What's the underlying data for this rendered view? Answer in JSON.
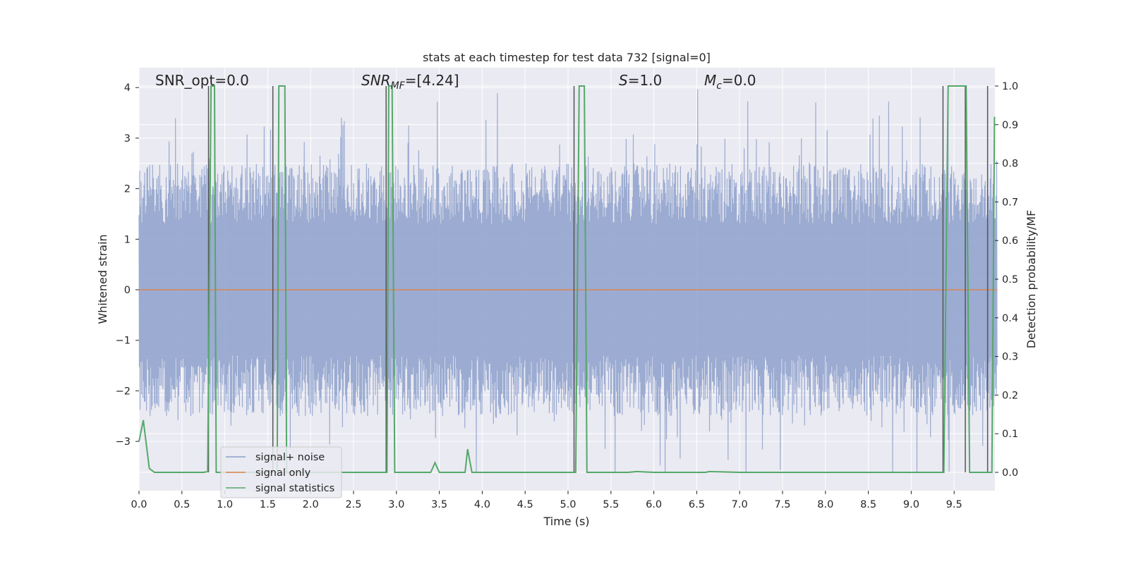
{
  "chart_data": {
    "type": "line",
    "title": "stats at each timestep for test data 732 [signal=0]",
    "xlabel": "Time (s)",
    "ylabel_left": "Whitened strain",
    "ylabel_right": "Detection probability/MF",
    "xlim": [
      0.0,
      10.0
    ],
    "ylim_left": [
      -3.9,
      4.4
    ],
    "ylim_right": [
      -0.047,
      1.047
    ],
    "x_ticks": [
      "0.0",
      "0.5",
      "1.0",
      "1.5",
      "2.0",
      "2.5",
      "3.0",
      "3.5",
      "4.0",
      "4.5",
      "5.0",
      "5.5",
      "6.0",
      "6.5",
      "7.0",
      "7.5",
      "8.0",
      "8.5",
      "9.0",
      "9.5"
    ],
    "y_ticks_left": [
      "4",
      "3",
      "2",
      "1",
      "0",
      "−1",
      "−2",
      "−3"
    ],
    "y_ticks_right": [
      "1.0",
      "0.9",
      "0.8",
      "0.7",
      "0.6",
      "0.5",
      "0.4",
      "0.3",
      "0.2",
      "0.1",
      "0.0"
    ],
    "grid": true,
    "legend_placement": "lower-left",
    "annotations": {
      "snr_opt": "SNR_opt=0.0",
      "snr_mf_base": "SNR",
      "snr_mf_sub": "MF",
      "snr_mf_value": "=[4.24]",
      "s_symbol": "S",
      "s_value": "=1.0",
      "mc_symbol": "M",
      "mc_sub": "c",
      "mc_value": "=0.0"
    },
    "noise_envelope": {
      "description_of_series": "signal+ noise",
      "typical_abs_range": [
        1.3,
        2.5
      ],
      "max_peak": 4.0,
      "min_trough": -3.6
    },
    "series": [
      {
        "name": "signal+ noise",
        "color": "#8da0cb",
        "axis": "left"
      },
      {
        "name": "signal only",
        "color": "#dd8452",
        "axis": "left",
        "x": [
          0.0,
          10.0
        ],
        "y": [
          0.0,
          0.0
        ]
      },
      {
        "name": "signal statistics",
        "color": "#55a868",
        "axis": "right",
        "x": [
          0.0,
          0.05,
          0.12,
          0.18,
          0.3,
          0.5,
          0.75,
          0.8,
          0.84,
          0.86,
          0.88,
          0.9,
          0.93,
          1.0,
          1.5,
          1.61,
          1.63,
          1.65,
          1.68,
          1.7,
          1.72,
          1.8,
          2.5,
          2.89,
          2.91,
          2.93,
          2.95,
          2.98,
          3.0,
          3.4,
          3.45,
          3.5,
          3.8,
          3.83,
          3.88,
          4.0,
          5.0,
          5.09,
          5.13,
          5.19,
          5.22,
          5.3,
          5.7,
          5.8,
          6.0,
          6.6,
          6.65,
          7.0,
          9.0,
          9.38,
          9.43,
          9.45,
          9.6,
          9.64,
          9.68,
          9.7,
          9.9,
          9.94,
          9.97
        ],
        "y": [
          0.08,
          0.135,
          0.01,
          0.0,
          0.0,
          0.0,
          0.0,
          0.002,
          1.0,
          1.0,
          1.0,
          0.0,
          0.0,
          0.0,
          0.0,
          0.0,
          1.0,
          1.0,
          1.0,
          1.0,
          0.0,
          0.0,
          0.0,
          0.0,
          1.0,
          1.0,
          1.0,
          0.0,
          0.0,
          0.0,
          0.025,
          0.0,
          0.0,
          0.06,
          0.0,
          0.0,
          0.0,
          0.0,
          1.0,
          1.0,
          0.0,
          0.0,
          0.0,
          0.002,
          0.0,
          0.0,
          0.002,
          0.0,
          0.0,
          0.0,
          1.0,
          1.0,
          1.0,
          1.0,
          0.0,
          0.0,
          0.0,
          0.0,
          0.92
        ]
      }
    ],
    "vertical_markers_s": [
      0.81,
      1.56,
      2.88,
      5.07,
      9.37,
      9.63,
      9.89
    ]
  }
}
